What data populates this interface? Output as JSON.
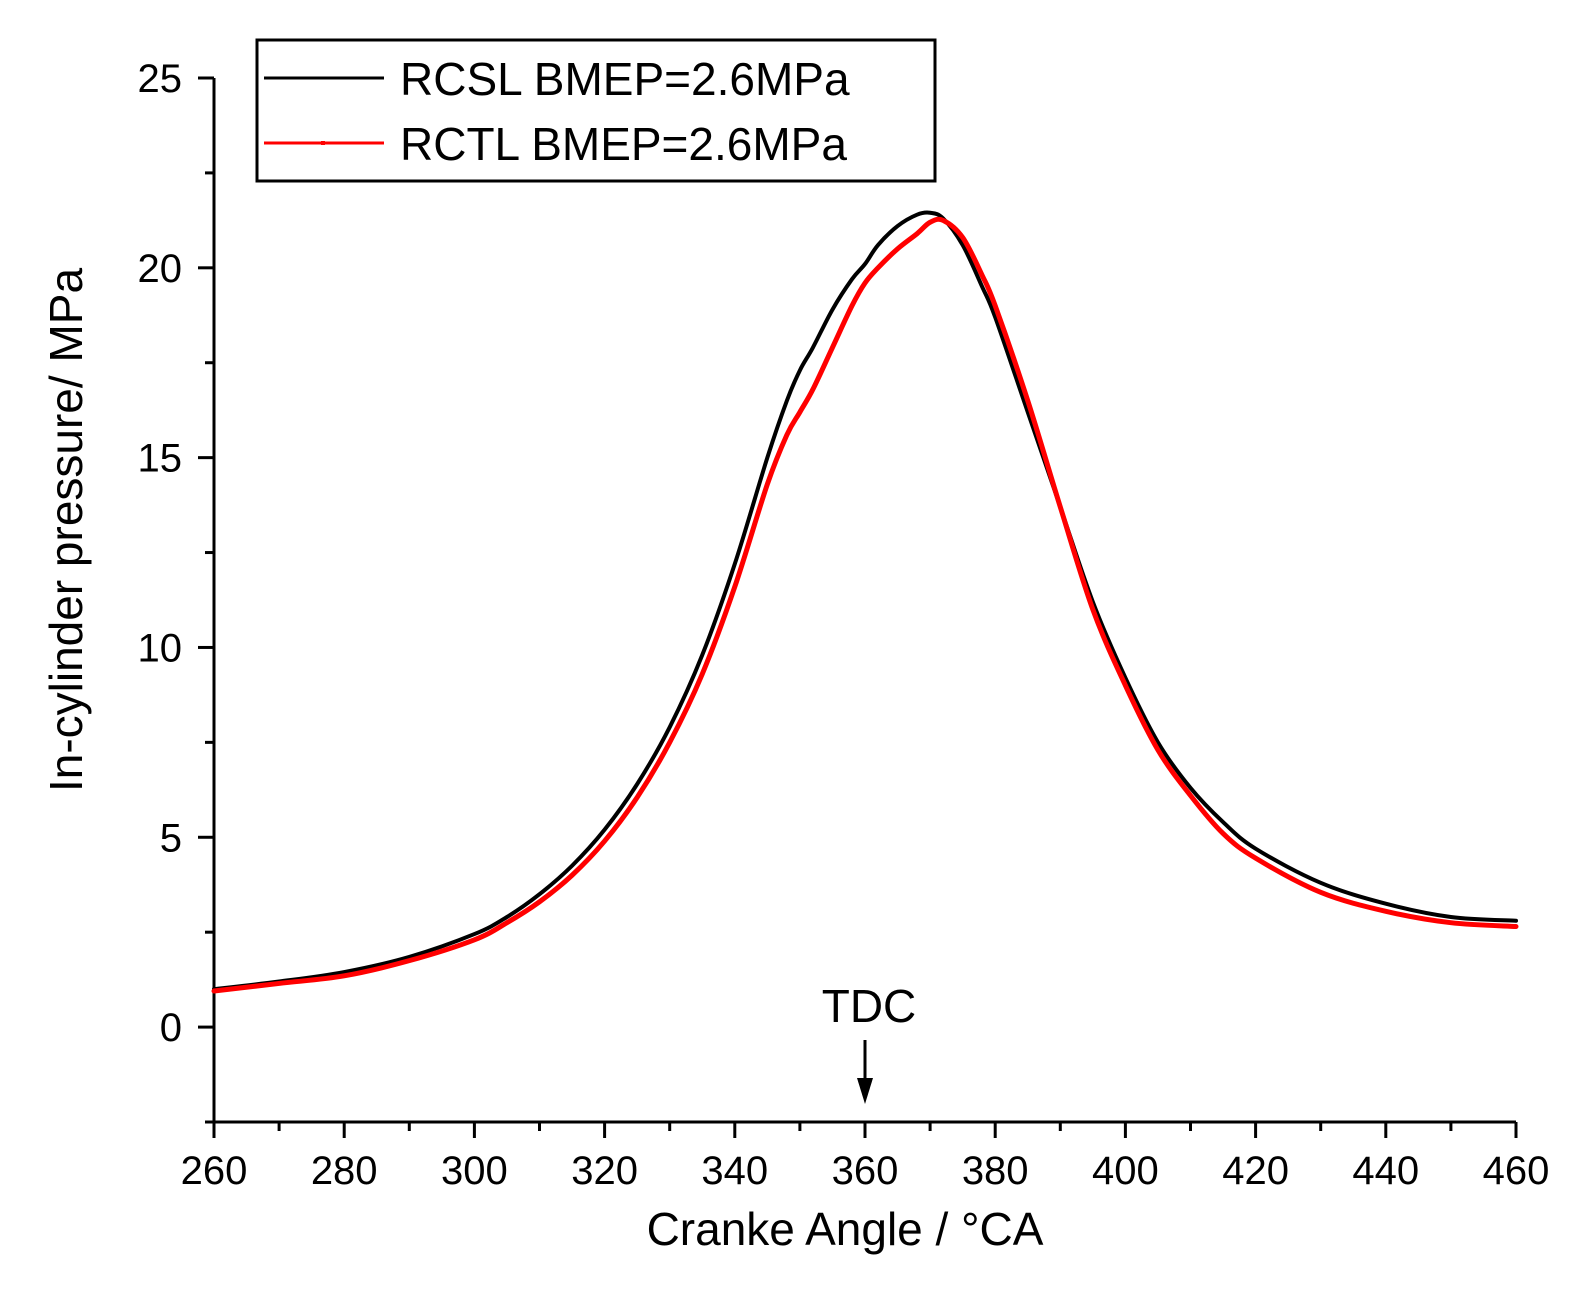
{
  "chart_data": {
    "type": "line",
    "title": "",
    "xlabel": "Cranke Angle / °CA",
    "ylabel": "In-cylinder pressure/ MPa",
    "xlim": [
      260,
      460
    ],
    "ylim": [
      -2.5,
      25
    ],
    "xticks": [
      260,
      280,
      300,
      320,
      340,
      360,
      380,
      400,
      420,
      440,
      460
    ],
    "yticks": [
      0,
      5,
      10,
      15,
      20,
      25
    ],
    "xtick_labels": [
      "260",
      "280",
      "300",
      "320",
      "340",
      "360",
      "380",
      "400",
      "420",
      "440",
      "460"
    ],
    "ytick_labels": [
      "0",
      "5",
      "10",
      "15",
      "20",
      "25"
    ],
    "grid": false,
    "legend_position": "top-left",
    "series": [
      {
        "name": "RCSL BMEP=2.6MPa",
        "color": "#000000",
        "x": [
          260,
          270,
          280,
          290,
          300,
          305,
          310,
          315,
          320,
          325,
          330,
          335,
          340,
          345,
          348,
          350,
          352,
          355,
          358,
          360,
          362,
          365,
          368,
          370,
          372,
          375,
          378,
          380,
          385,
          390,
          395,
          400,
          405,
          410,
          415,
          420,
          430,
          440,
          450,
          460
        ],
        "y": [
          1.0,
          1.2,
          1.45,
          1.85,
          2.45,
          2.9,
          3.5,
          4.25,
          5.2,
          6.4,
          7.9,
          9.8,
          12.2,
          15.0,
          16.5,
          17.3,
          17.9,
          18.9,
          19.7,
          20.1,
          20.6,
          21.1,
          21.4,
          21.45,
          21.3,
          20.6,
          19.5,
          18.7,
          16.2,
          13.7,
          11.2,
          9.2,
          7.5,
          6.3,
          5.4,
          4.7,
          3.8,
          3.25,
          2.9,
          2.8
        ]
      },
      {
        "name": "RCTL BMEP=2.6MPa",
        "color": "#ff0000",
        "x": [
          260,
          270,
          280,
          290,
          300,
          305,
          310,
          315,
          320,
          325,
          330,
          335,
          340,
          345,
          348,
          350,
          352,
          355,
          358,
          360,
          362,
          365,
          368,
          370,
          372,
          375,
          378,
          380,
          385,
          390,
          395,
          400,
          405,
          410,
          415,
          420,
          430,
          440,
          450,
          460
        ],
        "y": [
          0.95,
          1.15,
          1.35,
          1.75,
          2.3,
          2.75,
          3.3,
          4.0,
          4.9,
          6.05,
          7.5,
          9.3,
          11.6,
          14.3,
          15.6,
          16.2,
          16.8,
          17.9,
          19.0,
          19.6,
          20.0,
          20.5,
          20.9,
          21.2,
          21.25,
          20.8,
          19.8,
          19.0,
          16.5,
          13.7,
          11.0,
          9.0,
          7.3,
          6.1,
          5.1,
          4.45,
          3.55,
          3.05,
          2.75,
          2.65
        ]
      }
    ],
    "annotations": [
      {
        "text": "TDC",
        "x": 360,
        "arrow": "down"
      }
    ]
  }
}
